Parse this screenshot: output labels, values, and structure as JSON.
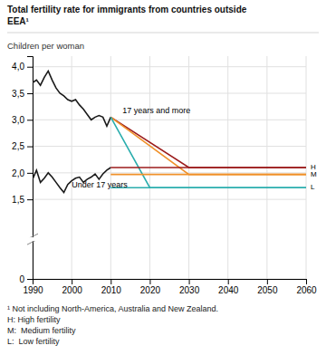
{
  "chart_data": {
    "type": "line",
    "title": [
      "Total fertility rate for immigrants from countries outside",
      "EEA¹"
    ],
    "y_label": "Children per woman",
    "footnotes": [
      "¹ Not including North-America, Australia and New Zealand.",
      "H: High fertility",
      "M:  Medium fertility",
      "L:  Low fertility"
    ],
    "xlim": [
      1990,
      2060
    ],
    "ylim": [
      0,
      4.2
    ],
    "xticks": [
      1990,
      2000,
      2010,
      2020,
      2030,
      2040,
      2050,
      2060
    ],
    "yticks": [
      0,
      {
        "value": 1.5,
        "label": "1,5"
      },
      {
        "value": 2.0,
        "label": "2,0"
      },
      {
        "value": 2.5,
        "label": "2,5"
      },
      {
        "value": 3.0,
        "label": "3,0"
      },
      {
        "value": 3.5,
        "label": "3,5"
      },
      {
        "value": 4.0,
        "label": "4,0"
      }
    ],
    "grid": true,
    "series": [
      {
        "color": "#1a1a1a",
        "x": [
          1990,
          1991,
          1992,
          1993,
          1994,
          1995,
          1996,
          1997,
          1998,
          1999,
          2000,
          2001,
          2002,
          2003,
          2004,
          2005,
          2006,
          2007,
          2008,
          2009,
          2010
        ],
        "values": [
          3.7,
          3.75,
          3.65,
          3.8,
          3.92,
          3.75,
          3.6,
          3.5,
          3.45,
          3.38,
          3.35,
          3.38,
          3.28,
          3.2,
          3.1,
          3.0,
          3.05,
          3.08,
          3.05,
          2.88,
          3.05
        ]
      },
      {
        "color": "#1a1a1a",
        "x": [
          1990,
          1991,
          1992,
          1993,
          1994,
          1995,
          1996,
          1997,
          1998,
          1999,
          2000,
          2001,
          2002,
          2003,
          2004,
          2005,
          2006,
          2007,
          2008,
          2009,
          2010
        ],
        "values": [
          1.88,
          2.05,
          1.82,
          1.9,
          2.0,
          1.92,
          1.82,
          1.72,
          1.63,
          1.78,
          1.85,
          1.9,
          1.92,
          1.82,
          1.88,
          1.92,
          1.98,
          1.88,
          1.98,
          2.05,
          2.1
        ]
      },
      {
        "color": "#9B1B1B",
        "x": [
          2010,
          2030,
          2060
        ],
        "values": [
          3.05,
          2.1,
          2.1
        ]
      },
      {
        "color": "#F0912A",
        "x": [
          2010,
          2030,
          2060
        ],
        "values": [
          3.05,
          1.97,
          1.97
        ]
      },
      {
        "color": "#2AADAD",
        "x": [
          2010,
          2020,
          2060
        ],
        "values": [
          3.05,
          1.72,
          1.72
        ]
      },
      {
        "name": "H",
        "color": "#9B1B1B",
        "x": [
          2010,
          2060
        ],
        "values": [
          2.1,
          2.1
        ]
      },
      {
        "name": "M",
        "color": "#F0912A",
        "x": [
          2010,
          2060
        ],
        "values": [
          1.97,
          1.97
        ]
      },
      {
        "name": "L",
        "color": "#2AADAD",
        "x": [
          2010,
          2060
        ],
        "values": [
          1.72,
          1.72
        ]
      }
    ],
    "annotations": [
      {
        "text": "17 years and more",
        "x": 2013,
        "y": 3.12
      },
      {
        "text": "Under 17 years",
        "x": 2000,
        "y": 1.73
      }
    ]
  }
}
